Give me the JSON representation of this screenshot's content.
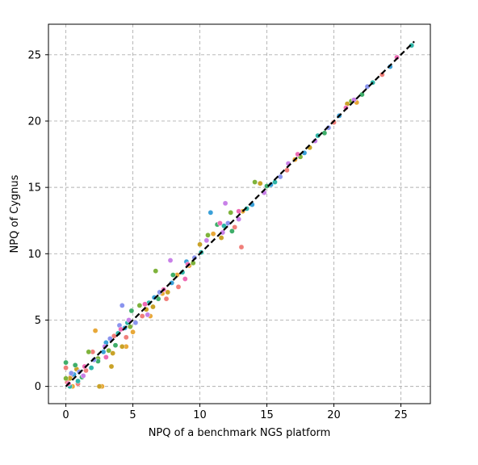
{
  "chart_data": {
    "type": "scatter",
    "xlabel": "NPQ of a benchmark NGS platform",
    "ylabel": "NPQ of Cygnus",
    "xlim": [
      -1.3,
      27.2
    ],
    "ylim": [
      -1.3,
      27.3
    ],
    "xticks": [
      0,
      5,
      10,
      15,
      20,
      25
    ],
    "yticks": [
      0,
      5,
      10,
      15,
      20,
      25
    ],
    "grid": true,
    "reference_line": {
      "style": "dashed",
      "color": "#000000",
      "x": [
        0,
        26
      ],
      "y": [
        0,
        26
      ]
    },
    "palette": [
      "#f07f7a",
      "#e8a838",
      "#c9a227",
      "#7fb33c",
      "#3fae6a",
      "#2fb5a8",
      "#3aa0d8",
      "#8a94ee",
      "#c880e8",
      "#ee6ab4"
    ],
    "series": [
      {
        "values": [
          [
            0.1,
            0.3
          ],
          [
            0.4,
            0.8
          ],
          [
            0.9,
            0.2
          ],
          [
            1.5,
            1.2
          ],
          [
            2.6,
            0.0
          ],
          [
            3.6,
            3.8
          ],
          [
            5.7,
            5.3
          ],
          [
            8.4,
            7.5
          ],
          [
            12.6,
            12.0
          ],
          [
            13.1,
            10.5
          ],
          [
            7.5,
            6.6
          ],
          [
            0.0,
            1.4
          ],
          [
            2.0,
            2.6
          ],
          [
            4.5,
            3.7
          ],
          [
            16.5,
            16.3
          ],
          [
            20.0,
            19.9
          ],
          [
            23.6,
            23.5
          ]
        ]
      },
      {
        "values": [
          [
            0.5,
            0.0
          ],
          [
            2.2,
            4.2
          ],
          [
            2.7,
            0.0
          ],
          [
            5.0,
            4.1
          ],
          [
            7.2,
            7.0
          ],
          [
            9.2,
            9.1
          ],
          [
            13.2,
            13.2
          ],
          [
            17.1,
            17.1
          ],
          [
            8.3,
            8.4
          ],
          [
            4.5,
            3.0
          ],
          [
            11.0,
            11.5
          ],
          [
            21.7,
            21.4
          ],
          [
            6.3,
            5.3
          ]
        ]
      },
      {
        "values": [
          [
            0.8,
            1.3
          ],
          [
            2.5,
            0.0
          ],
          [
            3.5,
            2.5
          ],
          [
            4.2,
            3.0
          ],
          [
            6.0,
            5.8
          ],
          [
            7.6,
            7.1
          ],
          [
            10.0,
            10.7
          ],
          [
            11.6,
            11.2
          ],
          [
            14.5,
            15.3
          ],
          [
            18.2,
            18.0
          ],
          [
            21.0,
            21.3
          ],
          [
            6.5,
            6.0
          ],
          [
            3.4,
            1.5
          ],
          [
            0.3,
            0.6
          ]
        ]
      },
      {
        "values": [
          [
            0.0,
            0.6
          ],
          [
            1.7,
            2.6
          ],
          [
            3.2,
            2.7
          ],
          [
            5.5,
            6.1
          ],
          [
            6.7,
            8.7
          ],
          [
            10.6,
            11.4
          ],
          [
            14.1,
            15.4
          ],
          [
            17.5,
            17.3
          ],
          [
            21.3,
            21.5
          ],
          [
            4.8,
            4.5
          ],
          [
            9.5,
            9.3
          ],
          [
            12.3,
            13.1
          ],
          [
            2.4,
            2.1
          ]
        ]
      },
      {
        "values": [
          [
            0.0,
            1.8
          ],
          [
            0.7,
            1.6
          ],
          [
            2.4,
            1.9
          ],
          [
            4.9,
            5.7
          ],
          [
            8.0,
            8.4
          ],
          [
            11.3,
            12.2
          ],
          [
            12.4,
            11.7
          ],
          [
            15.0,
            15.1
          ],
          [
            19.3,
            19.1
          ],
          [
            22.1,
            22.0
          ],
          [
            3.7,
            3.1
          ],
          [
            6.9,
            6.6
          ],
          [
            1.2,
            0.7
          ]
        ]
      },
      {
        "values": [
          [
            0.3,
            0.0
          ],
          [
            1.9,
            1.4
          ],
          [
            3.9,
            4.0
          ],
          [
            6.2,
            6.3
          ],
          [
            8.7,
            8.6
          ],
          [
            11.8,
            12.1
          ],
          [
            15.6,
            15.4
          ],
          [
            18.8,
            18.9
          ],
          [
            22.9,
            22.9
          ],
          [
            25.8,
            25.7
          ],
          [
            13.5,
            13.4
          ],
          [
            10.1,
            10.1
          ],
          [
            4.6,
            4.8
          ],
          [
            0.9,
            0.4
          ]
        ]
      },
      {
        "values": [
          [
            0.6,
            0.9
          ],
          [
            2.8,
            2.6
          ],
          [
            4.4,
            4.4
          ],
          [
            6.6,
            6.7
          ],
          [
            9.0,
            9.4
          ],
          [
            10.8,
            13.1
          ],
          [
            13.9,
            13.7
          ],
          [
            17.8,
            17.6
          ],
          [
            20.4,
            20.4
          ],
          [
            24.2,
            24.1
          ],
          [
            15.3,
            15.2
          ],
          [
            7.9,
            7.8
          ],
          [
            3.0,
            3.3
          ]
        ]
      },
      {
        "values": [
          [
            1.0,
            1.1
          ],
          [
            3.3,
            3.6
          ],
          [
            4.2,
            6.1
          ],
          [
            5.2,
            4.8
          ],
          [
            7.0,
            7.1
          ],
          [
            9.6,
            9.7
          ],
          [
            12.1,
            12.3
          ],
          [
            16.0,
            15.8
          ],
          [
            19.6,
            19.5
          ],
          [
            22.5,
            22.6
          ],
          [
            4.0,
            4.6
          ],
          [
            2.1,
            2.0
          ],
          [
            0.4,
            1.0
          ]
        ]
      },
      {
        "values": [
          [
            1.3,
            0.8
          ],
          [
            4.7,
            5.0
          ],
          [
            7.8,
            9.5
          ],
          [
            10.5,
            11.0
          ],
          [
            11.7,
            11.6
          ],
          [
            12.9,
            12.6
          ],
          [
            14.8,
            14.6
          ],
          [
            16.6,
            16.8
          ],
          [
            18.6,
            18.5
          ],
          [
            21.5,
            21.6
          ],
          [
            11.9,
            13.8
          ],
          [
            6.1,
            5.4
          ],
          [
            2.9,
            3.0
          ]
        ]
      },
      {
        "values": [
          [
            0.2,
            0.2
          ],
          [
            1.4,
            1.5
          ],
          [
            3.0,
            2.2
          ],
          [
            5.9,
            6.2
          ],
          [
            8.9,
            8.1
          ],
          [
            11.5,
            12.3
          ],
          [
            12.9,
            13.2
          ],
          [
            17.3,
            17.5
          ],
          [
            20.9,
            21.0
          ],
          [
            24.7,
            24.8
          ],
          [
            9.1,
            9.2
          ],
          [
            4.1,
            4.3
          ],
          [
            7.3,
            7.3
          ]
        ]
      }
    ]
  }
}
